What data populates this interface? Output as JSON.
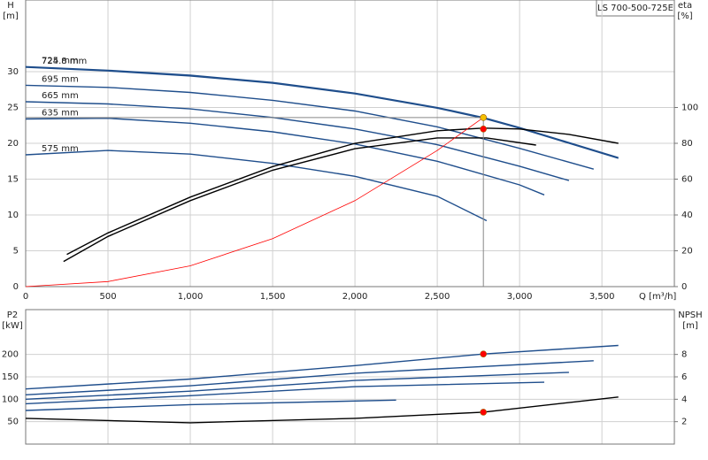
{
  "chart_data": [
    {
      "type": "line",
      "title": "LS 700-500-725E",
      "y_title": "H",
      "y_unit": "[m]",
      "y2_title": "eta",
      "y2_unit": "[%]",
      "x_title": "Q [m³/h]",
      "xlim": [
        0,
        3940
      ],
      "xticks": [
        0,
        500,
        {
          "value": 1000,
          "label": "1,000"
        },
        {
          "value": 1500,
          "label": "1,500"
        },
        {
          "value": 2000,
          "label": "2,000"
        },
        {
          "value": 2500,
          "label": "2,500"
        },
        {
          "value": 3000,
          "label": "3,000"
        },
        {
          "value": 3500,
          "label": "3,500"
        }
      ],
      "ylim": [
        0,
        40
      ],
      "yticks": [
        0,
        5,
        10,
        15,
        20,
        25,
        30
      ],
      "y2lim": [
        0,
        160
      ],
      "y2ticks": [
        0,
        20,
        40,
        60,
        80,
        100
      ],
      "grid": true,
      "series": [
        {
          "name": "725 mm",
          "color": "#1f4e8c",
          "x": [
            0,
            500,
            1000,
            1500,
            2000,
            2500,
            2780,
            3000,
            3300,
            3600
          ],
          "values": [
            30.7,
            30.2,
            29.5,
            28.5,
            27,
            25,
            23.6,
            22.2,
            20.1,
            18
          ]
        },
        {
          "name": "724.8 mm",
          "color": "#1f4e8c",
          "x": [
            0,
            500,
            1000,
            1500,
            2000,
            2500,
            2780,
            3000,
            3300,
            3600
          ],
          "values": [
            30.6,
            30.1,
            29.4,
            28.4,
            26.9,
            24.9,
            23.5,
            22.1,
            20,
            17.9
          ]
        },
        {
          "name": "695 mm",
          "color": "#1f4e8c",
          "x": [
            0,
            500,
            1000,
            1500,
            2000,
            2500,
            3000,
            3450
          ],
          "values": [
            28.1,
            27.8,
            27.1,
            26,
            24.5,
            22.3,
            19.3,
            16.4
          ]
        },
        {
          "name": "665 mm",
          "color": "#1f4e8c",
          "x": [
            0,
            500,
            1000,
            1500,
            2000,
            2500,
            3000,
            3300
          ],
          "values": [
            25.8,
            25.5,
            24.8,
            23.6,
            22,
            19.8,
            16.8,
            14.8
          ]
        },
        {
          "name": "635 mm",
          "color": "#1f4e8c",
          "x": [
            0,
            500,
            1000,
            1500,
            2000,
            2500,
            3000,
            3150
          ],
          "values": [
            23.4,
            23.5,
            22.8,
            21.6,
            19.9,
            17.5,
            14.2,
            12.8
          ]
        },
        {
          "name": "575 mm",
          "color": "#1f4e8c",
          "x": [
            0,
            500,
            1000,
            1500,
            2000,
            2500,
            2800
          ],
          "values": [
            18.4,
            19,
            18.5,
            17.2,
            15.4,
            12.6,
            9.2
          ]
        },
        {
          "color": "#000000",
          "axis": "y2",
          "x": [
            250,
            500,
            1000,
            1500,
            2000,
            2500,
            2780,
            3000,
            3300,
            3600
          ],
          "values": [
            18,
            30,
            50,
            67,
            80,
            87,
            88.5,
            88,
            85,
            80
          ]
        },
        {
          "color": "#000000",
          "axis": "y2",
          "x": [
            230,
            500,
            1000,
            1500,
            2000,
            2500,
            2800,
            3100
          ],
          "values": [
            14,
            28,
            48,
            65,
            77,
            83,
            83,
            79
          ]
        },
        {
          "color": "#ff0000",
          "x": [
            0,
            500,
            1000,
            1500,
            2000,
            2500,
            2780
          ],
          "values": [
            0,
            0.7,
            2.9,
            6.7,
            12,
            19,
            23.6
          ]
        },
        {
          "color": "#f5c000",
          "marker": true,
          "guides": true,
          "x": [
            2780
          ],
          "values": [
            23.6
          ]
        },
        {
          "color": "#ff0000",
          "marker": true,
          "axis": "y2",
          "x": [
            2780
          ],
          "values": [
            88
          ]
        }
      ]
    },
    {
      "type": "line",
      "y_title": "P2",
      "y_unit": "[kW]",
      "y2_title": "NPSH",
      "y2_unit": "[m]",
      "xlim": [
        0,
        3940
      ],
      "ylim": [
        0,
        300
      ],
      "yticks": [
        50,
        100,
        150,
        200
      ],
      "y2lim": [
        0,
        12
      ],
      "y2ticks": [
        2,
        4,
        6,
        8
      ],
      "grid": true,
      "series": [
        {
          "color": "#1f4e8c",
          "x": [
            0,
            1000,
            2000,
            2780,
            3600
          ],
          "values": [
            123,
            145,
            175,
            201,
            220
          ]
        },
        {
          "color": "#1f4e8c",
          "x": [
            0,
            1000,
            2000,
            3450
          ],
          "values": [
            110,
            130,
            158,
            186
          ]
        },
        {
          "color": "#1f4e8c",
          "x": [
            0,
            1000,
            2000,
            3300
          ],
          "values": [
            100,
            118,
            142,
            160
          ]
        },
        {
          "color": "#1f4e8c",
          "x": [
            0,
            1000,
            2000,
            3150
          ],
          "values": [
            90,
            108,
            128,
            138
          ]
        },
        {
          "color": "#1f4e8c",
          "x": [
            0,
            1000,
            2250
          ],
          "values": [
            75,
            88,
            98
          ]
        },
        {
          "color": "#000000",
          "axis": "y2",
          "x": [
            0,
            1000,
            2000,
            2780,
            3600
          ],
          "values": [
            2.3,
            1.9,
            2.3,
            2.85,
            4.2
          ]
        },
        {
          "color": "#ff0000",
          "marker": true,
          "x": [
            2780
          ],
          "values": [
            201
          ]
        },
        {
          "color": "#ff0000",
          "marker": true,
          "axis": "y2",
          "x": [
            2780
          ],
          "values": [
            2.85
          ]
        }
      ]
    }
  ]
}
